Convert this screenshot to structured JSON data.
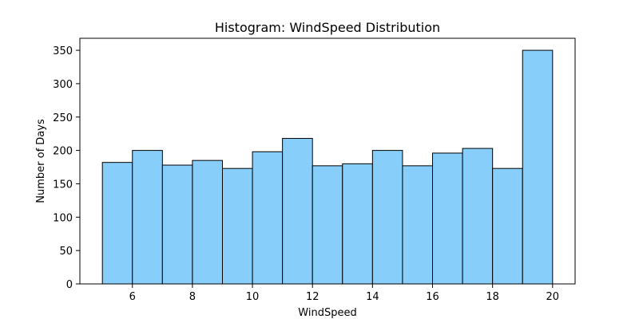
{
  "chart_data": {
    "type": "bar",
    "title": "Histogram: WindSpeed Distribution",
    "xlabel": "WindSpeed",
    "ylabel": "Number of Days",
    "bin_edges": [
      5,
      6,
      7,
      8,
      9,
      10,
      11,
      12,
      13,
      14,
      15,
      16,
      17,
      18,
      19,
      20
    ],
    "values": [
      182,
      200,
      178,
      185,
      173,
      198,
      218,
      177,
      180,
      200,
      177,
      196,
      203,
      173,
      350
    ],
    "xlim": [
      4.25,
      20.75
    ],
    "ylim": [
      0,
      368
    ],
    "x_ticks": [
      6,
      8,
      10,
      12,
      14,
      16,
      18,
      20
    ],
    "y_ticks": [
      0,
      50,
      100,
      150,
      200,
      250,
      300,
      350
    ],
    "bar_color": "#87CEFA",
    "edge_color": "#000000",
    "grid": false,
    "legend": "none"
  }
}
